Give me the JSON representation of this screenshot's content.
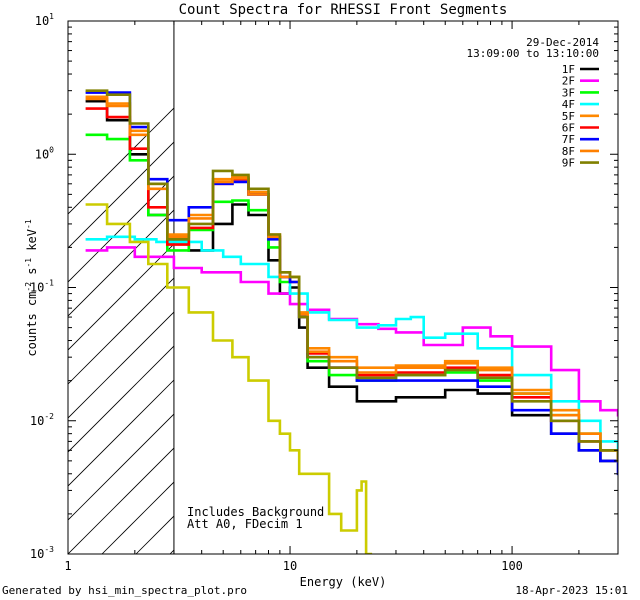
{
  "chart_data": {
    "type": "line",
    "title": "Count Spectra for RHESSI Front Segments",
    "xlabel": "Energy (keV)",
    "ylabel_parts": [
      "counts cm",
      "-2",
      " s",
      "-1",
      " keV",
      "-1"
    ],
    "xscale": "log",
    "yscale": "log",
    "xlim": [
      1,
      300
    ],
    "ylim": [
      0.001,
      10
    ],
    "x_ticks": [
      {
        "v": 1,
        "label": "1"
      },
      {
        "v": 10,
        "label": "10"
      },
      {
        "v": 100,
        "label": "100"
      }
    ],
    "y_ticks": [
      {
        "v": 10,
        "base": "10",
        "exp": "1"
      },
      {
        "v": 1,
        "base": "10",
        "exp": "0"
      },
      {
        "v": 0.1,
        "base": "10",
        "exp": "-1"
      },
      {
        "v": 0.01,
        "base": "10",
        "exp": "-2"
      },
      {
        "v": 0.001,
        "base": "10",
        "exp": "-3"
      }
    ],
    "attenuator_cutoff_keV": 3,
    "legend": {
      "date": "29-Dec-2014",
      "time_range": "13:09:00 to 13:10:00",
      "placement": "top-right"
    },
    "annotations": [
      "Includes Background",
      "Att A0, FDecim 1"
    ],
    "series": [
      {
        "name": "1F",
        "color": "#000000",
        "points": [
          [
            1.2,
            2.5
          ],
          [
            1.5,
            1.8
          ],
          [
            1.9,
            1.0
          ],
          [
            2.3,
            0.35
          ],
          [
            2.8,
            0.22
          ],
          [
            3.5,
            0.19
          ],
          [
            4.5,
            0.3
          ],
          [
            5.5,
            0.42
          ],
          [
            6.5,
            0.35
          ],
          [
            8,
            0.16
          ],
          [
            9,
            0.09
          ],
          [
            10,
            0.1
          ],
          [
            11,
            0.05
          ],
          [
            12,
            0.025
          ],
          [
            15,
            0.018
          ],
          [
            20,
            0.014
          ],
          [
            30,
            0.015
          ],
          [
            50,
            0.017
          ],
          [
            70,
            0.016
          ],
          [
            100,
            0.011
          ],
          [
            150,
            0.008
          ],
          [
            200,
            0.006
          ],
          [
            250,
            0.005
          ],
          [
            300,
            0.005
          ]
        ]
      },
      {
        "name": "2F",
        "color": "#ff00ff",
        "points": [
          [
            1.2,
            0.19
          ],
          [
            1.5,
            0.2
          ],
          [
            2,
            0.17
          ],
          [
            3,
            0.14
          ],
          [
            4,
            0.13
          ],
          [
            5,
            0.13
          ],
          [
            6,
            0.11
          ],
          [
            8,
            0.09
          ],
          [
            10,
            0.075
          ],
          [
            12,
            0.068
          ],
          [
            15,
            0.058
          ],
          [
            20,
            0.053
          ],
          [
            25,
            0.049
          ],
          [
            30,
            0.046
          ],
          [
            40,
            0.037
          ],
          [
            60,
            0.05
          ],
          [
            80,
            0.043
          ],
          [
            100,
            0.036
          ],
          [
            150,
            0.024
          ],
          [
            200,
            0.014
          ],
          [
            250,
            0.012
          ],
          [
            300,
            0.011
          ]
        ]
      },
      {
        "name": "3F",
        "color": "#00ff00",
        "points": [
          [
            1.2,
            1.4
          ],
          [
            1.5,
            1.3
          ],
          [
            1.9,
            0.9
          ],
          [
            2.3,
            0.35
          ],
          [
            2.8,
            0.19
          ],
          [
            3.5,
            0.27
          ],
          [
            4.5,
            0.44
          ],
          [
            5.5,
            0.45
          ],
          [
            6.5,
            0.38
          ],
          [
            8,
            0.2
          ],
          [
            9,
            0.11
          ],
          [
            10,
            0.12
          ],
          [
            11,
            0.06
          ],
          [
            12,
            0.028
          ],
          [
            15,
            0.022
          ],
          [
            20,
            0.02
          ],
          [
            30,
            0.022
          ],
          [
            50,
            0.023
          ],
          [
            70,
            0.02
          ],
          [
            100,
            0.016
          ],
          [
            150,
            0.011
          ],
          [
            200,
            0.008
          ],
          [
            250,
            0.006
          ],
          [
            300,
            0.005
          ]
        ]
      },
      {
        "name": "4F",
        "color": "#00ffff",
        "points": [
          [
            1.2,
            0.23
          ],
          [
            1.5,
            0.24
          ],
          [
            2,
            0.23
          ],
          [
            2.5,
            0.22
          ],
          [
            3,
            0.22
          ],
          [
            4,
            0.19
          ],
          [
            5,
            0.17
          ],
          [
            6,
            0.15
          ],
          [
            8,
            0.12
          ],
          [
            10,
            0.09
          ],
          [
            12,
            0.065
          ],
          [
            15,
            0.057
          ],
          [
            20,
            0.05
          ],
          [
            25,
            0.052
          ],
          [
            30,
            0.058
          ],
          [
            35,
            0.06
          ],
          [
            40,
            0.042
          ],
          [
            50,
            0.045
          ],
          [
            70,
            0.035
          ],
          [
            100,
            0.022
          ],
          [
            150,
            0.014
          ],
          [
            200,
            0.01
          ],
          [
            250,
            0.007
          ],
          [
            300,
            0.005
          ]
        ]
      },
      {
        "name": "5F",
        "color": "#ff8800",
        "points": [
          [
            1.2,
            2.7
          ],
          [
            1.5,
            2.4
          ],
          [
            1.9,
            1.5
          ],
          [
            2.3,
            0.6
          ],
          [
            2.8,
            0.25
          ],
          [
            3.5,
            0.35
          ],
          [
            4.5,
            0.65
          ],
          [
            5.5,
            0.68
          ],
          [
            6.5,
            0.52
          ],
          [
            8,
            0.25
          ],
          [
            9,
            0.13
          ],
          [
            10,
            0.12
          ],
          [
            11,
            0.065
          ],
          [
            12,
            0.035
          ],
          [
            15,
            0.03
          ],
          [
            20,
            0.025
          ],
          [
            30,
            0.026
          ],
          [
            50,
            0.028
          ],
          [
            70,
            0.025
          ],
          [
            100,
            0.017
          ],
          [
            150,
            0.012
          ],
          [
            200,
            0.008
          ],
          [
            250,
            0.006
          ],
          [
            300,
            0.005
          ]
        ]
      },
      {
        "name": "6F",
        "color": "#ff0000",
        "points": [
          [
            1.2,
            2.2
          ],
          [
            1.5,
            1.9
          ],
          [
            1.9,
            1.1
          ],
          [
            2.3,
            0.4
          ],
          [
            2.8,
            0.21
          ],
          [
            3.5,
            0.28
          ],
          [
            4.5,
            0.6
          ],
          [
            5.5,
            0.65
          ],
          [
            6.5,
            0.5
          ],
          [
            8,
            0.24
          ],
          [
            9,
            0.12
          ],
          [
            10,
            0.11
          ],
          [
            11,
            0.06
          ],
          [
            12,
            0.032
          ],
          [
            15,
            0.025
          ],
          [
            20,
            0.022
          ],
          [
            30,
            0.023
          ],
          [
            50,
            0.025
          ],
          [
            70,
            0.022
          ],
          [
            100,
            0.015
          ],
          [
            150,
            0.01
          ],
          [
            200,
            0.007
          ],
          [
            250,
            0.006
          ],
          [
            300,
            0.005
          ]
        ]
      },
      {
        "name": "7F",
        "color": "#0000ff",
        "points": [
          [
            1.2,
            2.9
          ],
          [
            1.5,
            2.9
          ],
          [
            1.9,
            1.6
          ],
          [
            2.3,
            0.65
          ],
          [
            2.8,
            0.32
          ],
          [
            3.5,
            0.4
          ],
          [
            4.5,
            0.6
          ],
          [
            5.5,
            0.62
          ],
          [
            6.5,
            0.5
          ],
          [
            8,
            0.23
          ],
          [
            9,
            0.12
          ],
          [
            10,
            0.11
          ],
          [
            11,
            0.06
          ],
          [
            12,
            0.03
          ],
          [
            15,
            0.025
          ],
          [
            20,
            0.02
          ],
          [
            30,
            0.02
          ],
          [
            50,
            0.02
          ],
          [
            70,
            0.018
          ],
          [
            100,
            0.012
          ],
          [
            150,
            0.008
          ],
          [
            200,
            0.006
          ],
          [
            250,
            0.005
          ],
          [
            300,
            0.004
          ]
        ]
      },
      {
        "name": "8F",
        "color": "#ff8000",
        "points": [
          [
            1.2,
            2.6
          ],
          [
            1.5,
            2.3
          ],
          [
            1.9,
            1.4
          ],
          [
            2.3,
            0.55
          ],
          [
            2.8,
            0.24
          ],
          [
            3.5,
            0.33
          ],
          [
            4.5,
            0.62
          ],
          [
            5.5,
            0.66
          ],
          [
            6.5,
            0.5
          ],
          [
            8,
            0.24
          ],
          [
            9,
            0.12
          ],
          [
            10,
            0.12
          ],
          [
            11,
            0.063
          ],
          [
            12,
            0.033
          ],
          [
            15,
            0.028
          ],
          [
            20,
            0.023
          ],
          [
            30,
            0.025
          ],
          [
            50,
            0.027
          ],
          [
            70,
            0.024
          ],
          [
            100,
            0.016
          ],
          [
            150,
            0.011
          ],
          [
            200,
            0.008
          ],
          [
            250,
            0.006
          ],
          [
            300,
            0.005
          ]
        ]
      },
      {
        "name": "9F",
        "color": "#808000",
        "points": [
          [
            1.2,
            3.0
          ],
          [
            1.5,
            2.8
          ],
          [
            1.9,
            1.7
          ],
          [
            2.3,
            0.6
          ],
          [
            2.8,
            0.23
          ],
          [
            3.5,
            0.3
          ],
          [
            4.5,
            0.75
          ],
          [
            5.5,
            0.7
          ],
          [
            6.5,
            0.55
          ],
          [
            8,
            0.25
          ],
          [
            9,
            0.13
          ],
          [
            10,
            0.12
          ],
          [
            11,
            0.06
          ],
          [
            12,
            0.03
          ],
          [
            15,
            0.025
          ],
          [
            20,
            0.021
          ],
          [
            30,
            0.022
          ],
          [
            50,
            0.024
          ],
          [
            70,
            0.021
          ],
          [
            100,
            0.014
          ],
          [
            150,
            0.01
          ],
          [
            200,
            0.007
          ],
          [
            250,
            0.006
          ],
          [
            300,
            0.005
          ]
        ]
      },
      {
        "name": "background",
        "color": "#cccc00",
        "legend": false,
        "points": [
          [
            1.2,
            0.42
          ],
          [
            1.5,
            0.3
          ],
          [
            1.9,
            0.22
          ],
          [
            2.3,
            0.15
          ],
          [
            2.8,
            0.1
          ],
          [
            3.5,
            0.065
          ],
          [
            4.5,
            0.04
          ],
          [
            5.5,
            0.03
          ],
          [
            6.5,
            0.02
          ],
          [
            8,
            0.01
          ],
          [
            9,
            0.008
          ],
          [
            10,
            0.006
          ],
          [
            11,
            0.004
          ],
          [
            12,
            0.004
          ],
          [
            15,
            0.002
          ],
          [
            17,
            0.0015
          ],
          [
            20,
            0.003
          ],
          [
            21,
            0.0035
          ],
          [
            22,
            0.001
          ]
        ]
      }
    ]
  },
  "footer": {
    "left": "Generated by hsi_min_spectra_plot.pro",
    "right": "18-Apr-2023 15:01"
  }
}
